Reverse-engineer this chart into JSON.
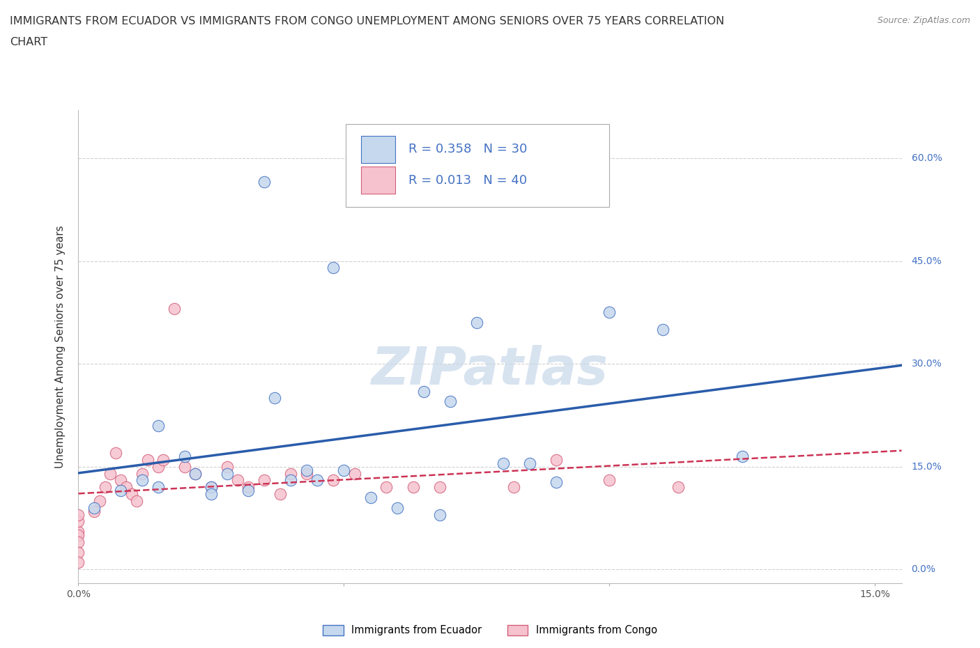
{
  "title_line1": "IMMIGRANTS FROM ECUADOR VS IMMIGRANTS FROM CONGO UNEMPLOYMENT AMONG SENIORS OVER 75 YEARS CORRELATION",
  "title_line2": "CHART",
  "source_text": "Source: ZipAtlas.com",
  "ylabel": "Unemployment Among Seniors over 75 years",
  "ytick_labels": [
    "0.0%",
    "15.0%",
    "30.0%",
    "45.0%",
    "60.0%"
  ],
  "ytick_values": [
    0.0,
    0.15,
    0.3,
    0.45,
    0.6
  ],
  "right_ytick_labels": [
    "60.0%",
    "45.0%",
    "30.0%",
    "15.0%"
  ],
  "right_ytick_values": [
    0.6,
    0.45,
    0.3,
    0.15
  ],
  "xtick_labels_bottom": [
    "0.0%",
    "15.0%"
  ],
  "xtick_values_bottom": [
    0.0,
    0.15
  ],
  "xlim": [
    0.0,
    0.155
  ],
  "ylim": [
    -0.02,
    0.67
  ],
  "ecuador_R": 0.358,
  "ecuador_N": 30,
  "congo_R": 0.013,
  "congo_N": 40,
  "ecuador_color": "#c5d8ed",
  "ecuador_edge_color": "#4472c4",
  "congo_color": "#f5c2ce",
  "congo_edge_color": "#d45f7a",
  "line_ecuador_color": "#2a5caa",
  "line_congo_color": "#cc3355",
  "watermark_color": "#c8d8ea",
  "watermark": "ZIPatlas",
  "right_label_color": "#4472c4",
  "ecuador_x": [
    0.035,
    0.048,
    0.003,
    0.008,
    0.012,
    0.015,
    0.02,
    0.022,
    0.025,
    0.028,
    0.032,
    0.037,
    0.04,
    0.043,
    0.05,
    0.06,
    0.065,
    0.068,
    0.075,
    0.08,
    0.085,
    0.09,
    0.1,
    0.11,
    0.125,
    0.055,
    0.045,
    0.015,
    0.025,
    0.07
  ],
  "ecuador_y": [
    0.565,
    0.44,
    0.09,
    0.115,
    0.13,
    0.21,
    0.165,
    0.14,
    0.12,
    0.14,
    0.115,
    0.25,
    0.13,
    0.145,
    0.145,
    0.09,
    0.26,
    0.08,
    0.36,
    0.155,
    0.155,
    0.127,
    0.375,
    0.35,
    0.165,
    0.105,
    0.13,
    0.12,
    0.11,
    0.245
  ],
  "congo_x": [
    0.0,
    0.0,
    0.0,
    0.0,
    0.0,
    0.0,
    0.0,
    0.003,
    0.004,
    0.005,
    0.006,
    0.007,
    0.008,
    0.009,
    0.01,
    0.011,
    0.012,
    0.013,
    0.015,
    0.016,
    0.018,
    0.02,
    0.022,
    0.025,
    0.028,
    0.03,
    0.032,
    0.035,
    0.038,
    0.04,
    0.043,
    0.048,
    0.052,
    0.058,
    0.063,
    0.068,
    0.082,
    0.09,
    0.1,
    0.113
  ],
  "congo_y": [
    0.055,
    0.07,
    0.08,
    0.05,
    0.04,
    0.025,
    0.01,
    0.085,
    0.1,
    0.12,
    0.14,
    0.17,
    0.13,
    0.12,
    0.11,
    0.1,
    0.14,
    0.16,
    0.15,
    0.16,
    0.38,
    0.15,
    0.14,
    0.12,
    0.15,
    0.13,
    0.12,
    0.13,
    0.11,
    0.14,
    0.14,
    0.13,
    0.14,
    0.12,
    0.12,
    0.12,
    0.12,
    0.16,
    0.13,
    0.12
  ],
  "bottom_legend_labels": [
    "Immigrants from Ecuador",
    "Immigrants from Congo"
  ],
  "grid_color": "#d0d0d0",
  "bg_color": "#ffffff",
  "title_color": "#333333",
  "label_color": "#555555"
}
